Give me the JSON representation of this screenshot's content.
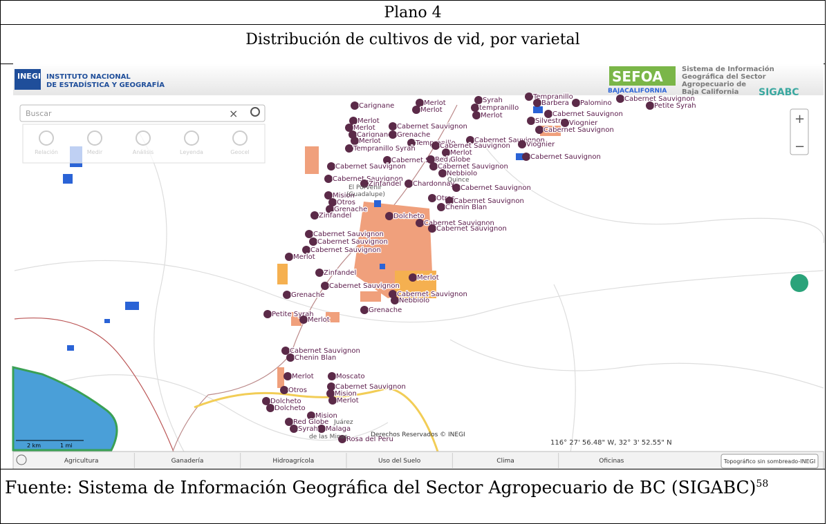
{
  "title": "Plano 4",
  "subtitle": "Distribución de cultivos de vid, por varietal",
  "map": {
    "header": {
      "inegi_line1": "INSTITUTO NACIONAL",
      "inegi_line2": "DE ESTADÍSTICA Y GEOGRAFÍA",
      "sefoa": "SEFOA",
      "baja": "BAJACALIFORNIA",
      "sistema": [
        "Sistema de Información",
        "Geográfica del Sector",
        "Agropecuario de",
        "Baja California"
      ],
      "sigabc": "SIGABC"
    },
    "search_placeholder": "Buscar",
    "tools": [
      "Relación",
      "Medir",
      "Análisis",
      "Leyenda",
      "Geocel"
    ],
    "labels": [
      "Carignane",
      "Merlot",
      "Merlot",
      "Syrah",
      "tempranillo",
      "Merlot",
      "Tempranillo",
      "Barbera",
      "Palomino",
      "Cabernet Sauvignon",
      "Petite Syrah",
      "Cabernet Sauvignon",
      "Silvestre",
      "Viognier",
      "Cabernet Sauvignon",
      "Merlot",
      "Merlot",
      "Carignane",
      "Grenache",
      "Merlot",
      "Tempranillo",
      "Tempranillo Syrah",
      "Cabernet Sauvignon",
      "Cabernet Sauvignon",
      "Cabernet Sauvignon",
      "Viognier",
      "Merlot",
      "Cabernet Sauvignon",
      "Red Globe",
      "Cabernet Sauvignon",
      "Cabernet Sauvignon",
      "Cabernet Sauvignon",
      "Nebbiolo",
      "Cabernet Sauvignon",
      "Zinfandel",
      "Chardonnay",
      "Cabernet Sauvignon",
      "Mision",
      "Otros",
      "Grenache",
      "Zinfandel",
      "Otros",
      "Cabernet Sauvignon",
      "Chenin Blan",
      "Dolcheto",
      "Cabernet Sauvignon",
      "Cabernet Sauvignon",
      "Cabernet Sauvignon",
      "Cabernet Sauvignon",
      "Cabernet Sauvignon",
      "Merlot",
      "Zinfandel",
      "Merlot",
      "Cabernet Sauvignon",
      "Grenache",
      "Cabernet Sauvignon",
      "Nebbiolo",
      "Grenache",
      "Petite Syrah",
      "Merlot",
      "Cabernet Sauvignon",
      "Chenin Blan",
      "Merlot",
      "Moscato",
      "Cabernet Sauvignon",
      "Mision",
      "Otros",
      "Merlot",
      "Dolcheto",
      "Dolcheto",
      "Mision",
      "Red Globe",
      "Malaga",
      "Syrah",
      "Rosa del Peru"
    ],
    "places": [
      "El Porvenir",
      "(Guadalupe)",
      "Quince",
      "Juárez",
      "de las Minas"
    ],
    "copyright": "Derechos Reservados © INEGI",
    "coordinates": "116° 27' 56.48\" W, 32° 3' 52.55\" N",
    "scale": [
      "2 km",
      "1 mi"
    ],
    "tabs": [
      "Agricultura",
      "Ganadería",
      "Hidroagrícola",
      "Uso del Suelo",
      "Clima",
      "Oficinas"
    ],
    "basemap": "Topográfico sin sombreado-INEGI"
  },
  "caption": "Fuente: Sistema de Información Geográfica del Sector Agropecuario de BC (SIGABC)",
  "footnote": "58"
}
